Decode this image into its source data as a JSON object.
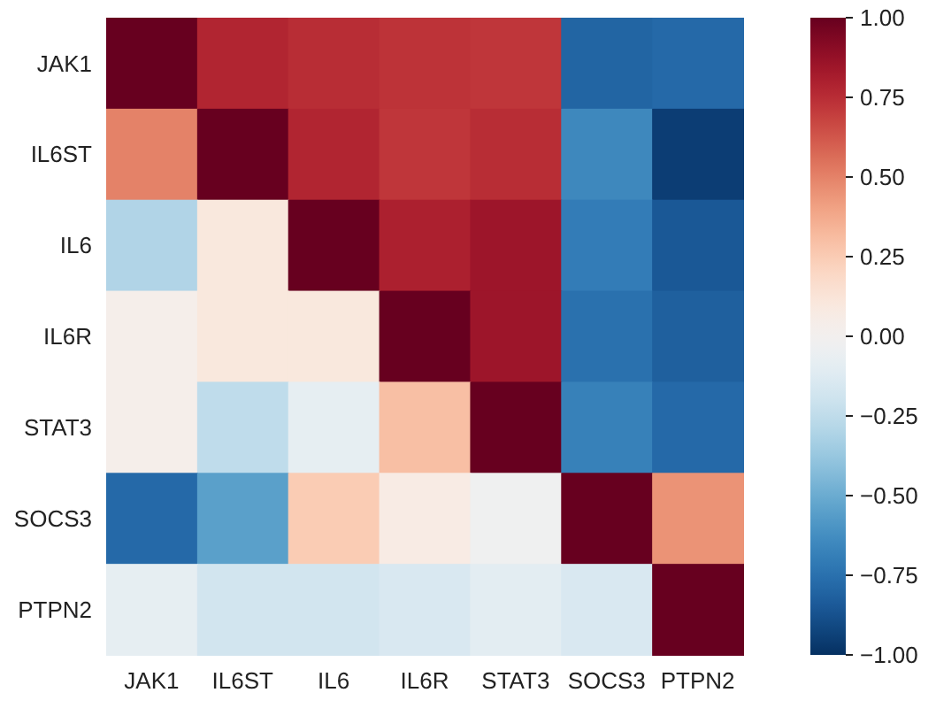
{
  "chart_data": {
    "type": "heatmap",
    "categories": [
      "JAK1",
      "IL6ST",
      "IL6",
      "IL6R",
      "STAT3",
      "SOCS3",
      "PTPN2"
    ],
    "y_categories": [
      "JAK1",
      "IL6ST",
      "IL6",
      "IL6R",
      "STAT3",
      "SOCS3",
      "PTPN2"
    ],
    "cells": [
      [
        1,
        0.78,
        0.75,
        0.73,
        0.72,
        -0.8,
        -0.78
      ],
      [
        0.5,
        1,
        0.78,
        0.72,
        0.75,
        -0.65,
        -0.95
      ],
      [
        -0.3,
        0.1,
        1,
        0.8,
        0.85,
        -0.7,
        -0.85
      ],
      [
        0.03,
        0.1,
        0.1,
        1,
        0.85,
        -0.75,
        -0.82
      ],
      [
        0.03,
        -0.25,
        -0.08,
        0.3,
        1,
        -0.68,
        -0.78
      ],
      [
        -0.78,
        -0.55,
        0.25,
        0.07,
        -0.02,
        1,
        0.45
      ],
      [
        -0.08,
        -0.18,
        -0.18,
        -0.15,
        -0.1,
        -0.15,
        1
      ]
    ],
    "clim": [
      -1,
      1
    ],
    "cticks": [
      {
        "value": 1,
        "label": "1.00"
      },
      {
        "value": 0.75,
        "label": "0.75"
      },
      {
        "value": 0.5,
        "label": "0.50"
      },
      {
        "value": 0.25,
        "label": "0.25"
      },
      {
        "value": 0,
        "label": "0.00"
      },
      {
        "value": -0.25,
        "label": "−0.25"
      },
      {
        "value": -0.5,
        "label": "−0.50"
      },
      {
        "value": -0.75,
        "label": "−0.75"
      },
      {
        "value": -1,
        "label": "−1.00"
      }
    ]
  }
}
